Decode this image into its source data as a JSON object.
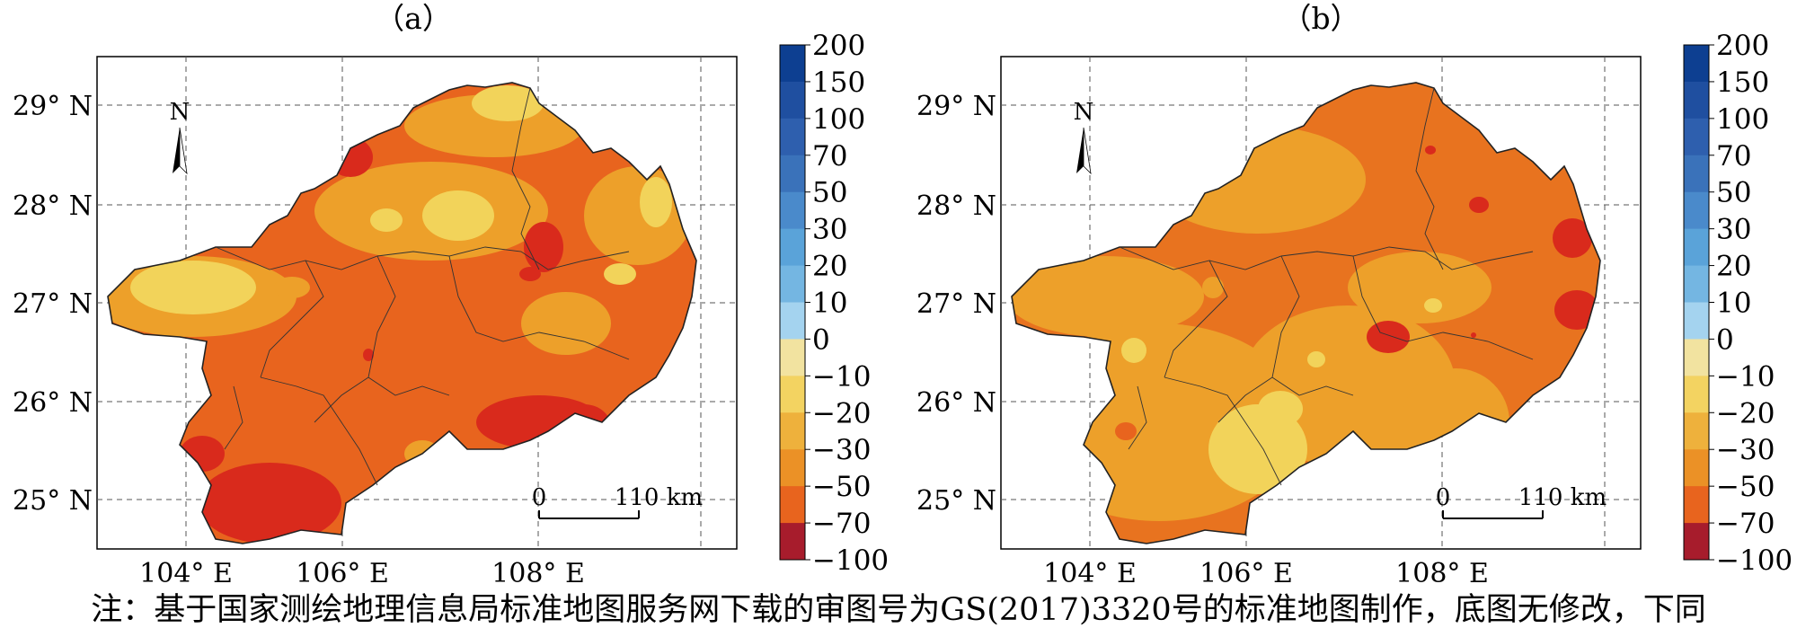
{
  "note": "注：基于国家测绘地理信息局标准地图服务网下载的审图号为GS(2017)3320号的标准地图制作，底图无修改，下同",
  "panels": [
    {
      "label": "（a）",
      "lat_labels": [
        "29° N",
        "28° N",
        "27° N",
        "26° N",
        "25° N"
      ],
      "lon_labels": [
        "104° E",
        "106° E",
        "108° E"
      ],
      "north_label": "N",
      "scale": {
        "start": "0",
        "end": "110 km"
      }
    },
    {
      "label": "（b）",
      "lat_labels": [
        "29° N",
        "28° N",
        "27° N",
        "26° N",
        "25° N"
      ],
      "lon_labels": [
        "104° E",
        "106° E",
        "108° E"
      ],
      "north_label": "N",
      "scale": {
        "start": "0",
        "end": "110 km"
      }
    }
  ],
  "colorbar": {
    "labels": [
      "200",
      "150",
      "100",
      "70",
      "50",
      "30",
      "20",
      "10",
      "0",
      "−10",
      "−20",
      "−30",
      "−50",
      "−70",
      "−100"
    ],
    "colors": [
      "#0d3f91",
      "#1f4fa0",
      "#2e5fae",
      "#3a72ba",
      "#4a8acb",
      "#5aa3d9",
      "#74b6e2",
      "#a4d3ef",
      "#f2e3a0",
      "#f3d361",
      "#eeb13c",
      "#eb9126",
      "#e8641e",
      "#d92a1c",
      "#a71c2c"
    ]
  },
  "map_colors": {
    "base_a": "#e8641e",
    "base_b": "#e8731f",
    "light": "#f2d35a",
    "mid": "#eda02a",
    "dark": "#d92a1c"
  }
}
